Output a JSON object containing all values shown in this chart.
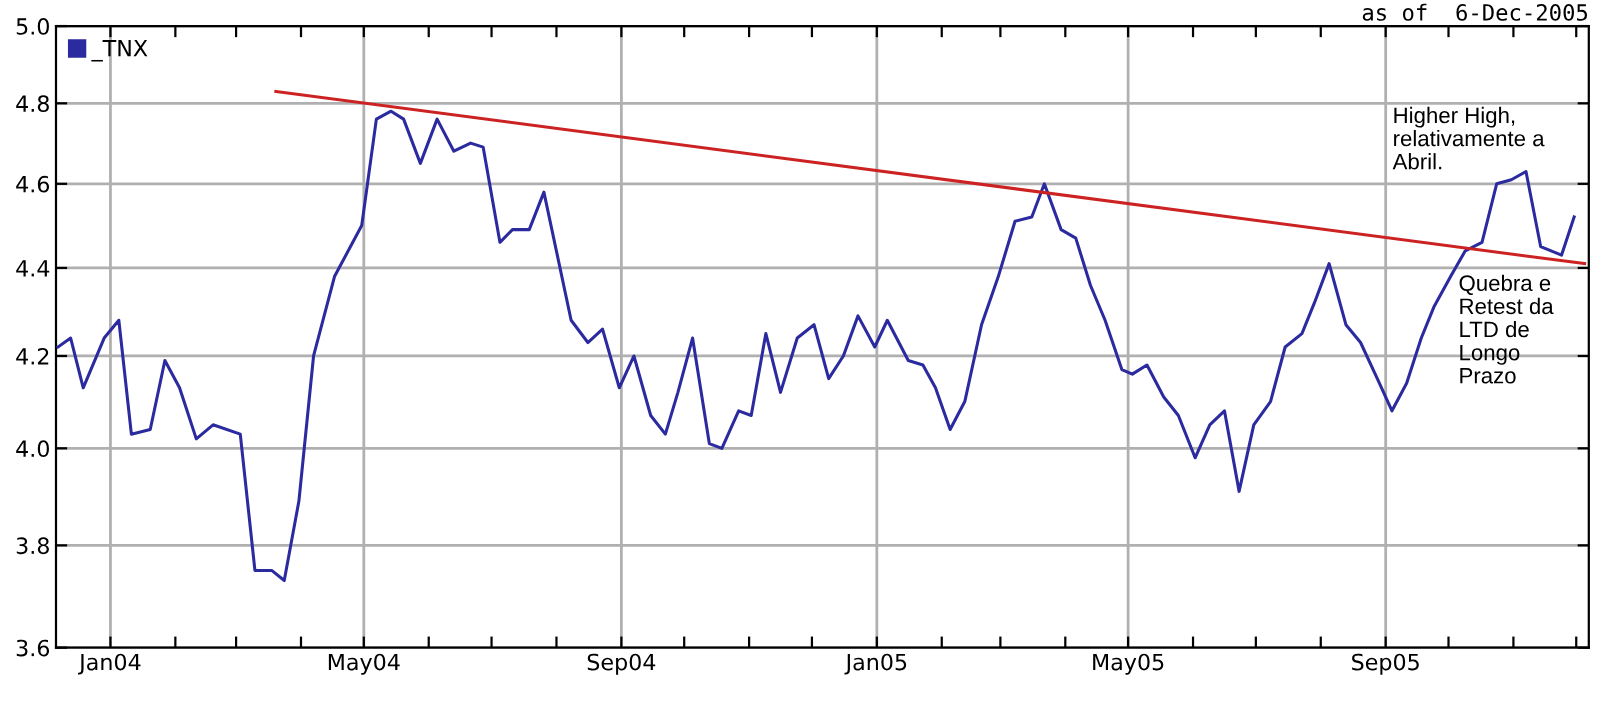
{
  "chart_data": {
    "type": "line",
    "subtitle": "as of  6-Dec-2005",
    "annotations": [
      "Higher High,\nrelativamente a\nAbril.",
      "Quebra e\nRetest da\nLTD de\nLongo\nPrazo"
    ],
    "log": "y",
    "grid": true,
    "legend": "top left",
    "marker": "none",
    "line_style": "solid",
    "xlim": [
      "2003-12-06",
      "2005-12-07"
    ],
    "xticks": [
      {
        "value": "2004-01-01",
        "label": "Jan04"
      },
      {
        "value": "2004-02-01",
        "label": null
      },
      {
        "value": "2004-03-01",
        "label": null
      },
      {
        "value": "2004-04-01",
        "label": null
      },
      {
        "value": "2004-05-01",
        "label": "May04"
      },
      {
        "value": "2004-06-01",
        "label": null
      },
      {
        "value": "2004-07-01",
        "label": null
      },
      {
        "value": "2004-08-01",
        "label": null
      },
      {
        "value": "2004-09-01",
        "label": "Sep04"
      },
      {
        "value": "2004-10-01",
        "label": null
      },
      {
        "value": "2004-11-01",
        "label": null
      },
      {
        "value": "2004-12-01",
        "label": null
      },
      {
        "value": "2005-01-01",
        "label": "Jan05"
      },
      {
        "value": "2005-02-01",
        "label": null
      },
      {
        "value": "2005-03-01",
        "label": null
      },
      {
        "value": "2005-04-01",
        "label": null
      },
      {
        "value": "2005-05-01",
        "label": "May05"
      },
      {
        "value": "2005-06-01",
        "label": null
      },
      {
        "value": "2005-07-01",
        "label": null
      },
      {
        "value": "2005-08-01",
        "label": null
      },
      {
        "value": "2005-09-01",
        "label": "Sep05"
      },
      {
        "value": "2005-10-01",
        "label": null
      },
      {
        "value": "2005-11-01",
        "label": null
      },
      {
        "value": "2005-12-01",
        "label": null
      }
    ],
    "ylim": [
      3.6,
      5.0
    ],
    "yticks": [
      {
        "value": 3.6,
        "label": "3.6"
      },
      {
        "value": 3.8,
        "label": "3.8"
      },
      {
        "value": 4.0,
        "label": "4.0"
      },
      {
        "value": 4.2,
        "label": "4.2"
      },
      {
        "value": 4.4,
        "label": "4.4"
      },
      {
        "value": 4.6,
        "label": "4.6"
      },
      {
        "value": 4.8,
        "label": "4.8"
      },
      {
        "value": 5.0,
        "label": "5.0"
      }
    ],
    "series": [
      {
        "name": "_TNX",
        "color": "#2b2b9f",
        "x": [
          "2003-12-07",
          "2003-12-13",
          "2003-12-19",
          "2003-12-29",
          "2004-01-05",
          "2004-01-11",
          "2004-01-20",
          "2004-01-27",
          "2004-02-03",
          "2004-02-11",
          "2004-02-19",
          "2004-03-03",
          "2004-03-10",
          "2004-03-18",
          "2004-03-24",
          "2004-03-31",
          "2004-04-07",
          "2004-04-17",
          "2004-04-30",
          "2004-05-07",
          "2004-05-14",
          "2004-05-20",
          "2004-05-28",
          "2004-06-05",
          "2004-06-13",
          "2004-06-21",
          "2004-06-27",
          "2004-07-05",
          "2004-07-11",
          "2004-07-19",
          "2004-07-26",
          "2004-08-08",
          "2004-08-16",
          "2004-08-23",
          "2004-08-31",
          "2004-09-07",
          "2004-09-15",
          "2004-09-22",
          "2004-09-28",
          "2004-10-05",
          "2004-10-13",
          "2004-10-19",
          "2004-10-27",
          "2004-11-02",
          "2004-11-09",
          "2004-11-16",
          "2004-11-24",
          "2004-12-02",
          "2004-12-09",
          "2004-12-16",
          "2004-12-23",
          "2004-12-31",
          "2005-01-06",
          "2005-01-16",
          "2005-01-23",
          "2005-01-29",
          "2005-02-05",
          "2005-02-12",
          "2005-02-20",
          "2005-02-28",
          "2005-03-08",
          "2005-03-16",
          "2005-03-22",
          "2005-03-30",
          "2005-04-06",
          "2005-04-13",
          "2005-04-20",
          "2005-04-28",
          "2005-05-03",
          "2005-05-10",
          "2005-05-18",
          "2005-05-25",
          "2005-06-02",
          "2005-06-09",
          "2005-06-16",
          "2005-06-23",
          "2005-06-30",
          "2005-07-08",
          "2005-07-15",
          "2005-07-23",
          "2005-07-29",
          "2005-08-05",
          "2005-08-13",
          "2005-08-20",
          "2005-08-28",
          "2005-09-04",
          "2005-09-11",
          "2005-09-18",
          "2005-09-24",
          "2005-10-02",
          "2005-10-09",
          "2005-10-17",
          "2005-10-24",
          "2005-10-31",
          "2005-11-07",
          "2005-11-14",
          "2005-11-24",
          "2005-11-30"
        ],
        "values": [
          4.22,
          4.24,
          4.13,
          4.24,
          4.28,
          4.03,
          4.04,
          4.19,
          4.13,
          4.02,
          4.05,
          4.03,
          3.75,
          3.75,
          3.73,
          3.89,
          4.2,
          4.38,
          4.5,
          4.76,
          4.78,
          4.76,
          4.65,
          4.76,
          4.68,
          4.7,
          4.69,
          4.46,
          4.49,
          4.49,
          4.58,
          4.28,
          4.23,
          4.26,
          4.13,
          4.2,
          4.07,
          4.03,
          4.12,
          4.24,
          4.01,
          4.0,
          4.08,
          4.07,
          4.25,
          4.12,
          4.24,
          4.27,
          4.15,
          4.2,
          4.29,
          4.22,
          4.28,
          4.19,
          4.18,
          4.13,
          4.04,
          4.1,
          4.27,
          4.38,
          4.51,
          4.52,
          4.6,
          4.49,
          4.47,
          4.36,
          4.28,
          4.17,
          4.16,
          4.18,
          4.11,
          4.07,
          3.98,
          4.05,
          4.08,
          3.91,
          4.05,
          4.1,
          4.22,
          4.25,
          4.32,
          4.41,
          4.27,
          4.23,
          4.15,
          4.08,
          4.14,
          4.24,
          4.31,
          4.38,
          4.44,
          4.46,
          4.6,
          4.61,
          4.63,
          4.45,
          4.43,
          4.52
        ]
      },
      {
        "type": "line",
        "color": "#cc2222",
        "x": [
          "2004-03-20",
          "2005-12-05"
        ],
        "values": [
          4.83,
          4.41
        ]
      }
    ]
  }
}
